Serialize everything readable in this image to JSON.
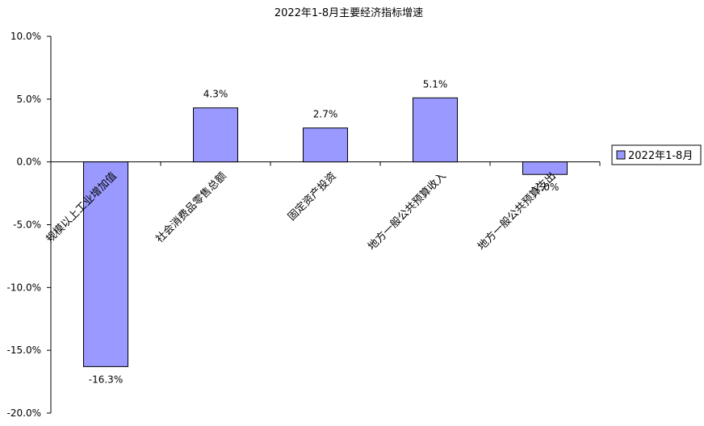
{
  "chart_data": {
    "type": "bar",
    "title": "2022年1-8月主要经济指标增速",
    "categories": [
      "规模以上工业增加值",
      "社会消费品零售总额",
      "固定资产投资",
      "地方一般公共预算收入",
      "地方一般公共预算支出"
    ],
    "series": [
      {
        "name": "2022年1-8月",
        "values": [
          -16.3,
          4.3,
          2.7,
          5.1,
          -1.0
        ],
        "color": "#9999ff"
      }
    ],
    "data_labels": [
      "-16.3%",
      "4.3%",
      "2.7%",
      "5.1%",
      "-1.0%"
    ],
    "y_ticks": [
      "10.0%",
      "5.0%",
      "0.0%",
      "-5.0%",
      "-10.0%",
      "-15.0%",
      "-20.0%"
    ],
    "ylim": [
      -20,
      10
    ],
    "xlabel": "",
    "ylabel": "",
    "grid": false,
    "legend_position": "right"
  }
}
